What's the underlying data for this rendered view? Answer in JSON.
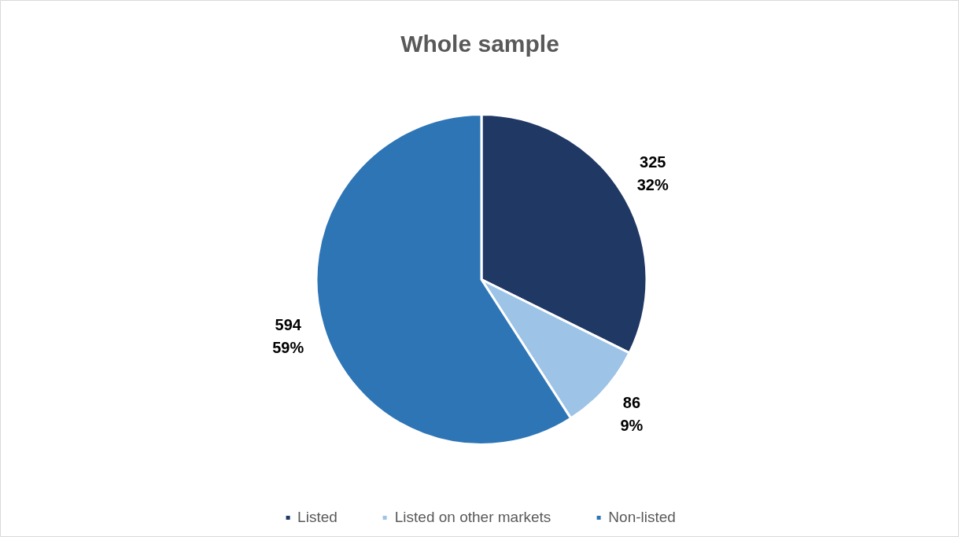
{
  "chart_data": {
    "type": "pie",
    "title": "Whole sample",
    "categories": [
      "Listed",
      "Listed on other markets",
      "Non-listed"
    ],
    "values": [
      325,
      86,
      594
    ],
    "colors": [
      "#203864",
      "#9dc3e6",
      "#2e75b6"
    ],
    "value_labels": [
      "325\n32%",
      "86\n9%",
      "594\n59%"
    ],
    "legend": "bottom"
  }
}
